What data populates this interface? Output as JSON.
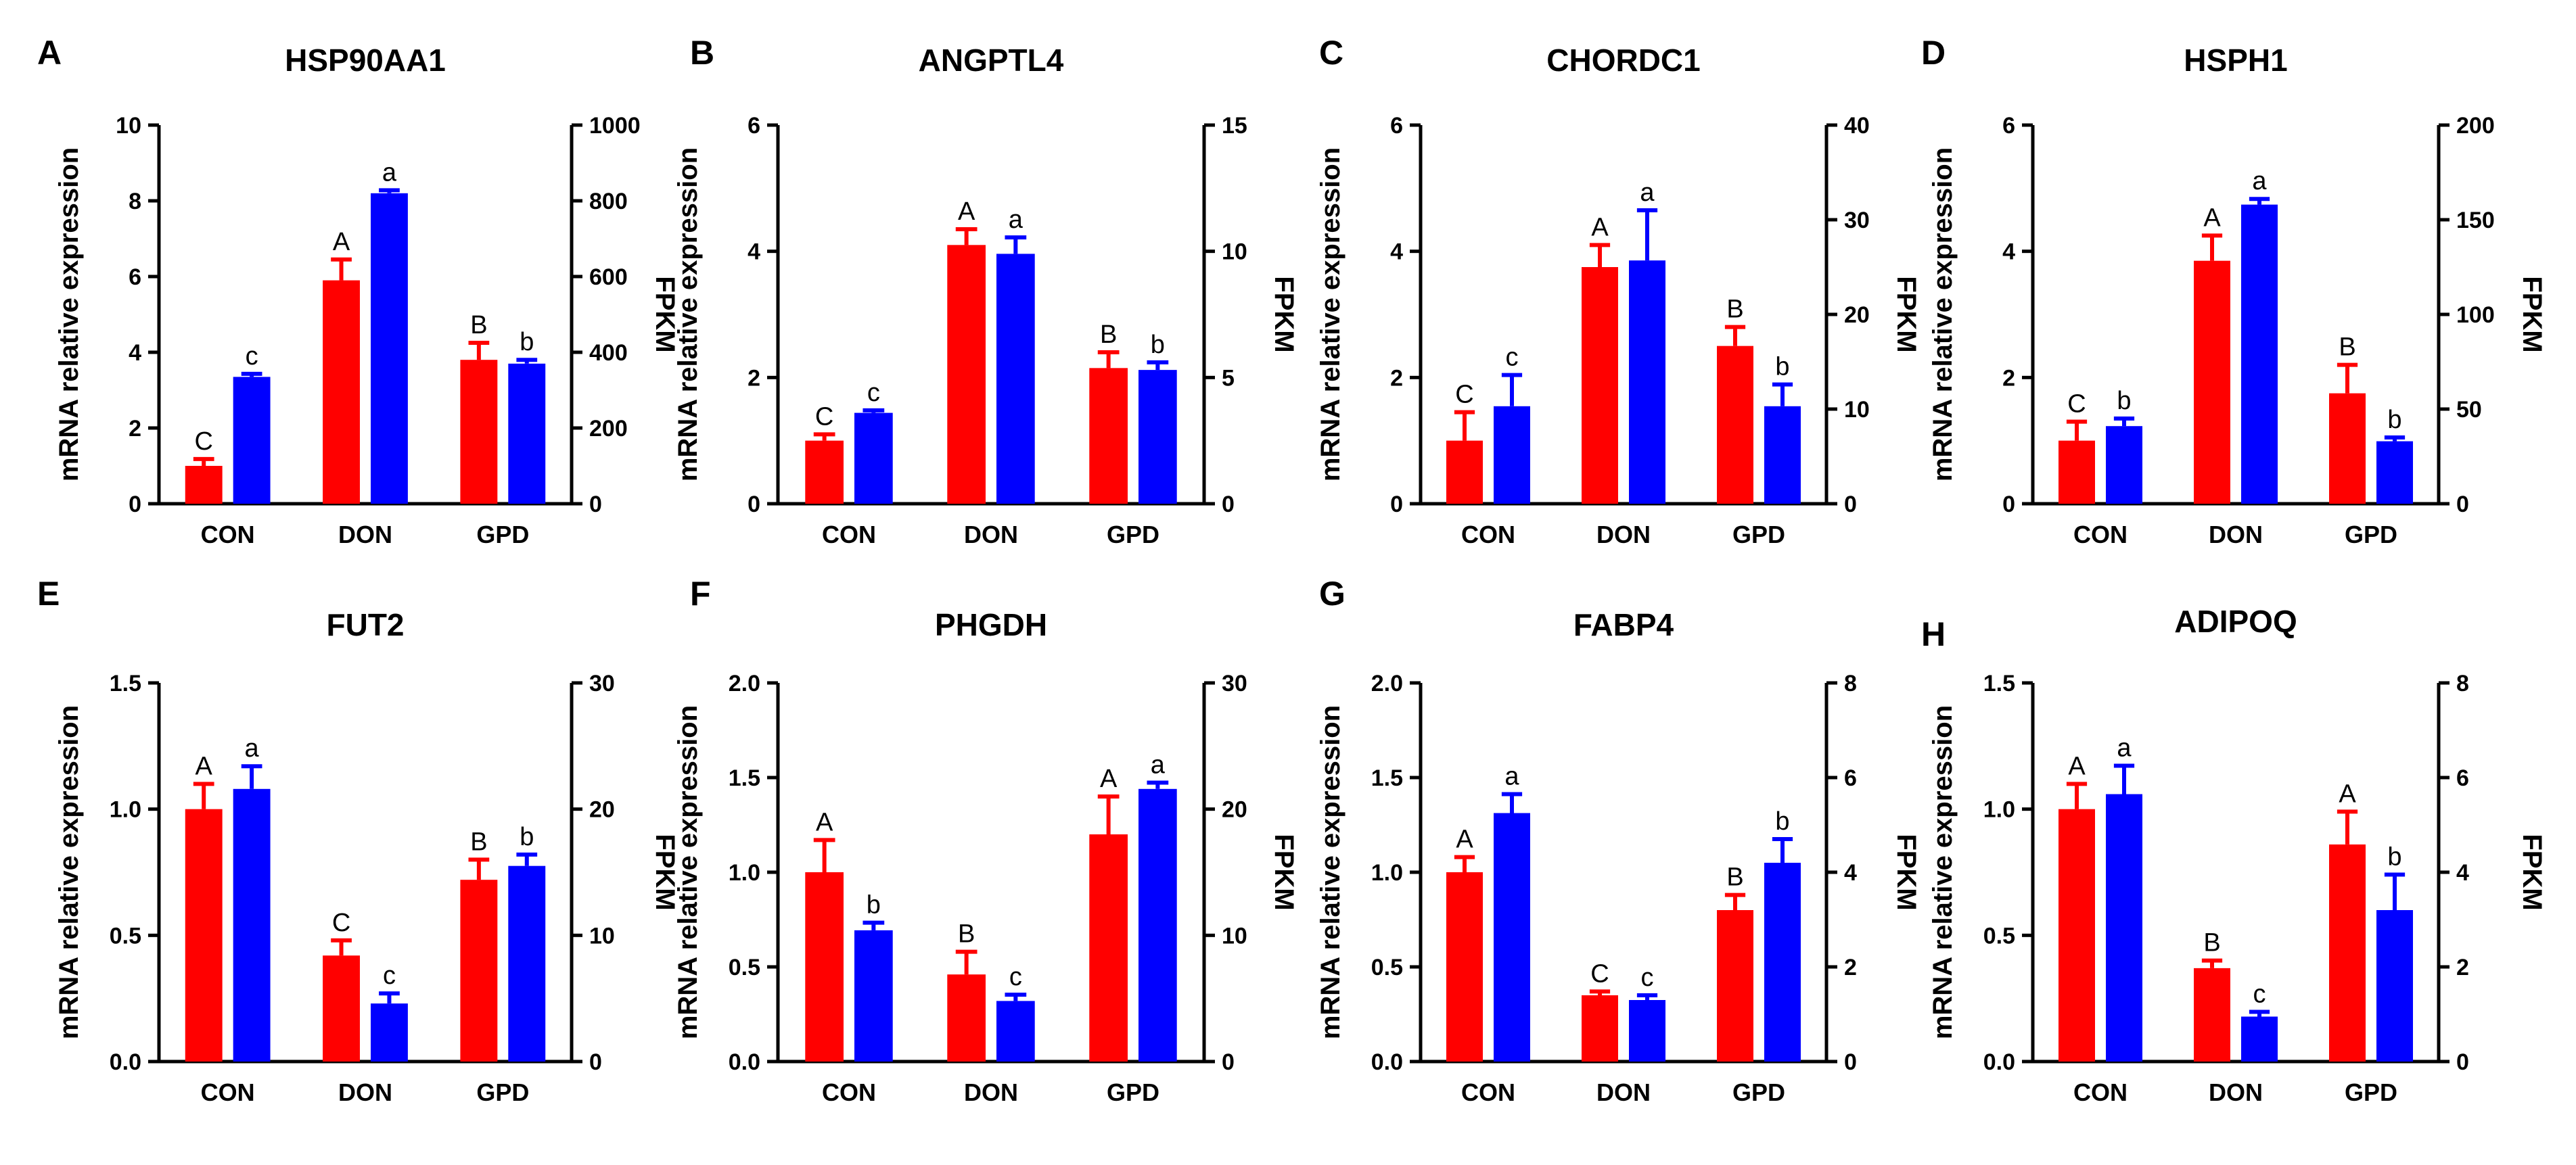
{
  "colors": {
    "mrna": "#ff0000",
    "fpkm": "#0000ff",
    "axis": "#000000"
  },
  "chart_data": [
    {
      "type": "bar",
      "panel": "A",
      "title": "HSP90AA1",
      "categories": [
        "CON",
        "DON",
        "GPD"
      ],
      "ylabel": "mRNA relative expression",
      "y2label": "FPKM",
      "ylim": [
        0,
        10
      ],
      "yticks": [
        "0",
        "2",
        "4",
        "6",
        "8",
        "10"
      ],
      "y2lim": [
        0,
        1000
      ],
      "y2ticks": [
        "0",
        "200",
        "400",
        "600",
        "800",
        "1000"
      ],
      "series": [
        {
          "name": "mRNA relative expression",
          "axis": "left",
          "values": [
            1.0,
            5.9,
            3.8
          ],
          "errors": [
            0.18,
            0.55,
            0.45
          ],
          "labels": [
            "C",
            "A",
            "B"
          ]
        },
        {
          "name": "FPKM",
          "axis": "right",
          "values": [
            335,
            820,
            370
          ],
          "errors": [
            8,
            8,
            10
          ],
          "labels": [
            "c",
            "a",
            "b"
          ]
        }
      ]
    },
    {
      "type": "bar",
      "panel": "B",
      "title": "ANGPTL4",
      "categories": [
        "CON",
        "DON",
        "GPD"
      ],
      "ylabel": "mRNA relative expression",
      "y2label": "FPKM",
      "ylim": [
        0,
        6
      ],
      "yticks": [
        "0",
        "2",
        "4",
        "6"
      ],
      "y2lim": [
        0,
        15
      ],
      "y2ticks": [
        "0",
        "5",
        "10",
        "15"
      ],
      "series": [
        {
          "name": "mRNA relative expression",
          "axis": "left",
          "values": [
            1.0,
            4.1,
            2.15
          ],
          "errors": [
            0.1,
            0.25,
            0.25
          ],
          "labels": [
            "C",
            "A",
            "B"
          ]
        },
        {
          "name": "FPKM",
          "axis": "right",
          "values": [
            3.6,
            9.9,
            5.3
          ],
          "errors": [
            0.1,
            0.65,
            0.3
          ],
          "labels": [
            "c",
            "a",
            "b"
          ]
        }
      ]
    },
    {
      "type": "bar",
      "panel": "C",
      "title": "CHORDC1",
      "categories": [
        "CON",
        "DON",
        "GPD"
      ],
      "ylabel": "mRNA relative expression",
      "y2label": "FPKM",
      "ylim": [
        0,
        6
      ],
      "yticks": [
        "0",
        "2",
        "4",
        "6"
      ],
      "y2lim": [
        0,
        40
      ],
      "y2ticks": [
        "0",
        "10",
        "20",
        "30",
        "40"
      ],
      "series": [
        {
          "name": "mRNA relative expression",
          "axis": "left",
          "values": [
            1.0,
            3.75,
            2.5
          ],
          "errors": [
            0.45,
            0.35,
            0.3
          ],
          "labels": [
            "C",
            "A",
            "B"
          ]
        },
        {
          "name": "FPKM",
          "axis": "right",
          "values": [
            10.3,
            25.7,
            10.3
          ],
          "errors": [
            3.3,
            5.3,
            2.3
          ],
          "labels": [
            "c",
            "a",
            "b"
          ]
        }
      ]
    },
    {
      "type": "bar",
      "panel": "D",
      "title": "HSPH1",
      "categories": [
        "CON",
        "DON",
        "GPD"
      ],
      "ylabel": "mRNA relative expression",
      "y2label": "FPKM",
      "ylim": [
        0,
        6
      ],
      "yticks": [
        "0",
        "2",
        "4",
        "6"
      ],
      "y2lim": [
        0,
        200
      ],
      "y2ticks": [
        "0",
        "50",
        "100",
        "150",
        "200"
      ],
      "series": [
        {
          "name": "mRNA relative expression",
          "axis": "left",
          "values": [
            1.0,
            3.85,
            1.75
          ],
          "errors": [
            0.3,
            0.4,
            0.45
          ],
          "labels": [
            "C",
            "A",
            "B"
          ]
        },
        {
          "name": "FPKM",
          "axis": "right",
          "values": [
            41,
            158,
            33
          ],
          "errors": [
            4,
            3,
            2
          ],
          "labels": [
            "b",
            "a",
            "b"
          ]
        }
      ]
    },
    {
      "type": "bar",
      "panel": "E",
      "title": "FUT2",
      "categories": [
        "CON",
        "DON",
        "GPD"
      ],
      "ylabel": "mRNA relative expression",
      "y2label": "FPKM",
      "ylim": [
        0,
        1.5
      ],
      "yticks": [
        "0.0",
        "0.5",
        "1.0",
        "1.5"
      ],
      "y2lim": [
        0,
        30
      ],
      "y2ticks": [
        "0",
        "10",
        "20",
        "30"
      ],
      "series": [
        {
          "name": "mRNA relative expression",
          "axis": "left",
          "values": [
            1.0,
            0.42,
            0.72
          ],
          "errors": [
            0.1,
            0.06,
            0.08
          ],
          "labels": [
            "A",
            "C",
            "B"
          ]
        },
        {
          "name": "FPKM",
          "axis": "right",
          "values": [
            21.6,
            4.6,
            15.5
          ],
          "errors": [
            1.8,
            0.8,
            0.9
          ],
          "labels": [
            "a",
            "c",
            "b"
          ]
        }
      ]
    },
    {
      "type": "bar",
      "panel": "F",
      "title": "PHGDH",
      "categories": [
        "CON",
        "DON",
        "GPD"
      ],
      "ylabel": "mRNA relative expression",
      "y2label": "FPKM",
      "ylim": [
        0,
        2.0
      ],
      "yticks": [
        "0.0",
        "0.5",
        "1.0",
        "1.5",
        "2.0"
      ],
      "y2lim": [
        0,
        30
      ],
      "y2ticks": [
        "0",
        "10",
        "20",
        "30"
      ],
      "series": [
        {
          "name": "mRNA relative expression",
          "axis": "left",
          "values": [
            1.0,
            0.46,
            1.2
          ],
          "errors": [
            0.17,
            0.12,
            0.2
          ],
          "labels": [
            "A",
            "B",
            "A"
          ]
        },
        {
          "name": "FPKM",
          "axis": "right",
          "values": [
            10.4,
            4.8,
            21.6
          ],
          "errors": [
            0.6,
            0.5,
            0.5
          ],
          "labels": [
            "b",
            "c",
            "a"
          ]
        }
      ]
    },
    {
      "type": "bar",
      "panel": "G",
      "title": "FABP4",
      "categories": [
        "CON",
        "DON",
        "GPD"
      ],
      "ylabel": "mRNA relative expression",
      "y2label": "FPKM",
      "ylim": [
        0,
        2.0
      ],
      "yticks": [
        "0.0",
        "0.5",
        "1.0",
        "1.5",
        "2.0"
      ],
      "y2lim": [
        0,
        8
      ],
      "y2ticks": [
        "0",
        "2",
        "4",
        "6",
        "8"
      ],
      "series": [
        {
          "name": "mRNA relative expression",
          "axis": "left",
          "values": [
            1.0,
            0.35,
            0.8
          ],
          "errors": [
            0.08,
            0.02,
            0.08
          ],
          "labels": [
            "A",
            "C",
            "B"
          ]
        },
        {
          "name": "FPKM",
          "axis": "right",
          "values": [
            5.25,
            1.3,
            4.2
          ],
          "errors": [
            0.4,
            0.1,
            0.5
          ],
          "labels": [
            "a",
            "c",
            "b"
          ]
        }
      ]
    },
    {
      "type": "bar",
      "panel": "H",
      "title": "ADIPOQ",
      "categories": [
        "CON",
        "DON",
        "GPD"
      ],
      "ylabel": "mRNA relative expression",
      "y2label": "FPKM",
      "ylim": [
        0,
        1.5
      ],
      "yticks": [
        "0.0",
        "0.5",
        "1.0",
        "1.5"
      ],
      "y2lim": [
        0,
        8
      ],
      "y2ticks": [
        "0",
        "2",
        "4",
        "6",
        "8"
      ],
      "series": [
        {
          "name": "mRNA relative expression",
          "axis": "left",
          "values": [
            1.0,
            0.37,
            0.86
          ],
          "errors": [
            0.1,
            0.03,
            0.13
          ],
          "labels": [
            "A",
            "B",
            "A"
          ]
        },
        {
          "name": "FPKM",
          "axis": "right",
          "values": [
            5.65,
            0.95,
            3.2
          ],
          "errors": [
            0.6,
            0.1,
            0.75
          ],
          "labels": [
            "a",
            "c",
            "b"
          ]
        }
      ]
    }
  ]
}
